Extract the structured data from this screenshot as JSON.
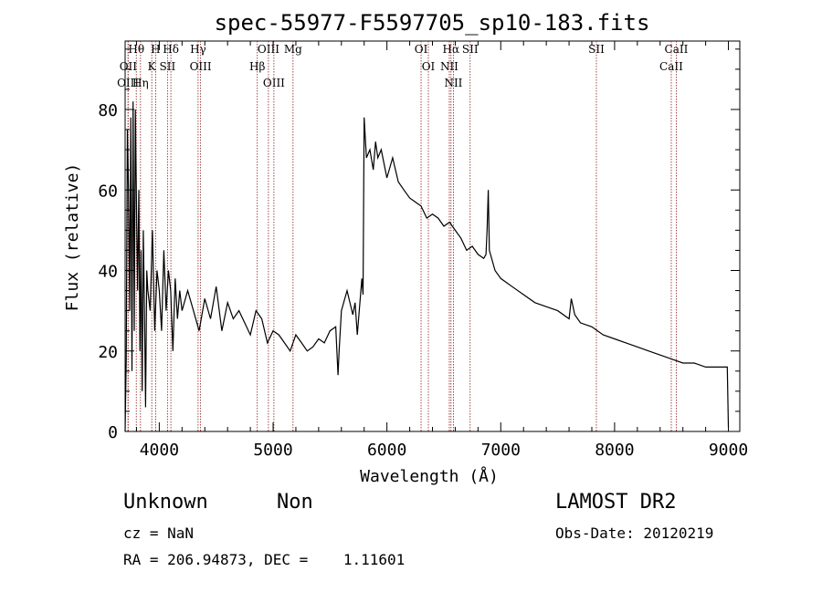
{
  "chart_data": {
    "type": "line",
    "title": "spec-55977-F5597705_sp10-183.fits",
    "xlabel": "Wavelength (Å)",
    "ylabel": "Flux (relative)",
    "xlim": [
      3700,
      9100
    ],
    "ylim": [
      0,
      97
    ],
    "xticks": [
      4000,
      5000,
      6000,
      7000,
      8000,
      9000
    ],
    "yticks": [
      0,
      20,
      40,
      60,
      80
    ],
    "series": [
      {
        "x": [
          3700,
          3710,
          3720,
          3730,
          3740,
          3750,
          3760,
          3770,
          3780,
          3790,
          3800,
          3810,
          3820,
          3830,
          3840,
          3850,
          3860,
          3870,
          3880,
          3890,
          3900,
          3920,
          3940,
          3960,
          3980,
          4000,
          4020,
          4040,
          4060,
          4080,
          4100,
          4120,
          4140,
          4160,
          4180,
          4200,
          4250,
          4300,
          4350,
          4400,
          4450,
          4500,
          4550,
          4600,
          4650,
          4700,
          4750,
          4800,
          4850,
          4900,
          4950,
          5000,
          5050,
          5100,
          5150,
          5200,
          5250,
          5300,
          5350,
          5400,
          5450,
          5500,
          5550,
          5570,
          5580,
          5600,
          5650,
          5700,
          5720,
          5740,
          5760,
          5780,
          5790,
          5800,
          5820,
          5850,
          5880,
          5900,
          5920,
          5950,
          6000,
          6050,
          6100,
          6150,
          6200,
          6250,
          6300,
          6350,
          6400,
          6450,
          6500,
          6550,
          6600,
          6650,
          6700,
          6750,
          6800,
          6850,
          6870,
          6880,
          6890,
          6900,
          6950,
          7000,
          7050,
          7100,
          7200,
          7300,
          7400,
          7500,
          7600,
          7620,
          7650,
          7700,
          7800,
          7900,
          8000,
          8100,
          8200,
          8300,
          8400,
          8500,
          8600,
          8700,
          8800,
          8900,
          8990,
          9000
        ],
        "y": [
          0,
          18,
          75,
          60,
          30,
          78,
          15,
          82,
          25,
          80,
          55,
          35,
          60,
          20,
          45,
          10,
          50,
          30,
          6,
          40,
          35,
          30,
          50,
          25,
          40,
          35,
          25,
          45,
          30,
          40,
          35,
          20,
          38,
          28,
          35,
          30,
          35,
          30,
          25,
          33,
          28,
          36,
          25,
          32,
          28,
          30,
          27,
          24,
          30,
          28,
          22,
          25,
          24,
          22,
          20,
          24,
          22,
          20,
          21,
          23,
          22,
          25,
          26,
          14,
          20,
          30,
          35,
          29,
          32,
          24,
          31,
          38,
          34,
          78,
          68,
          70,
          65,
          72,
          68,
          70,
          63,
          68,
          62,
          60,
          58,
          57,
          56,
          53,
          54,
          53,
          51,
          52,
          50,
          48,
          45,
          46,
          44,
          43,
          44,
          50,
          60,
          45,
          40,
          38,
          37,
          36,
          34,
          32,
          31,
          30,
          28,
          33,
          29,
          27,
          26,
          24,
          23,
          22,
          21,
          20,
          19,
          18,
          17,
          17,
          16,
          16,
          16,
          1
        ]
      }
    ],
    "spectral_lines": [
      {
        "label": "Hθ",
        "x": 3798
      },
      {
        "label": "OII",
        "x": 3727
      },
      {
        "label": "OIII",
        "x": 3725
      },
      {
        "label": "Hη",
        "x": 3835
      },
      {
        "label": "H",
        "x": 3968
      },
      {
        "label": "K",
        "x": 3934
      },
      {
        "label": "Hδ",
        "x": 4102
      },
      {
        "label": "SII",
        "x": 4072
      },
      {
        "label": "Hγ",
        "x": 4341
      },
      {
        "label": "OIII",
        "x": 4363
      },
      {
        "label": "OIII",
        "x": 4959
      },
      {
        "label": "Hβ",
        "x": 4861
      },
      {
        "label": "OIII",
        "x": 5007
      },
      {
        "label": "Mg",
        "x": 5175
      },
      {
        "label": "OI",
        "x": 6300
      },
      {
        "label": "OI",
        "x": 6364
      },
      {
        "label": "Hα",
        "x": 6563
      },
      {
        "label": "SII",
        "x": 6731
      },
      {
        "label": "NII",
        "x": 6548
      },
      {
        "label": "NII",
        "x": 6584
      },
      {
        "label": "SII",
        "x": 7840
      },
      {
        "label": "CaII",
        "x": 8542
      },
      {
        "label": "CaII",
        "x": 8498
      }
    ]
  },
  "footer": {
    "classification": "Unknown",
    "subclass": "Non",
    "survey": "LAMOST DR2",
    "cz": "cz = NaN",
    "obs_date": "Obs-Date: 20120219",
    "radec": "RA = 206.94873, DEC =    1.11601"
  }
}
